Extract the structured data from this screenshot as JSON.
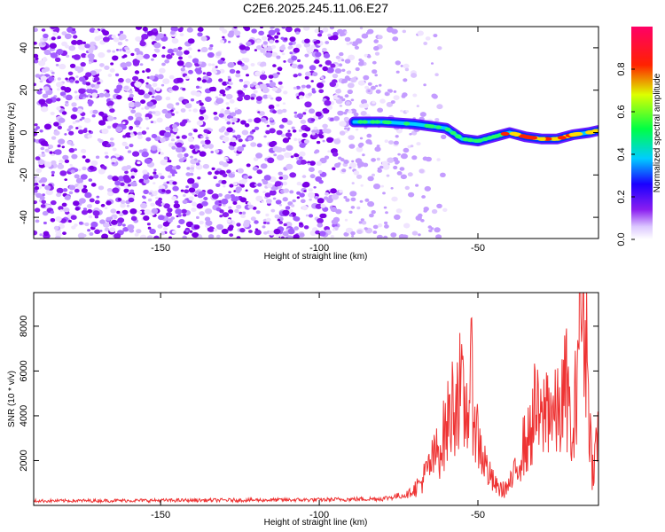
{
  "chart_data": [
    {
      "type": "heatmap",
      "title": "C2E6.2025.245.11.06.E27",
      "xlabel": "Height of straight line (km)",
      "ylabel": "Frequency (Hz)",
      "xlim": [
        -190,
        -12
      ],
      "ylim": [
        -50,
        50
      ],
      "xticks": [
        -150,
        -100,
        -50
      ],
      "yticks": [
        40,
        20,
        0,
        -20,
        -40
      ],
      "colorbar": {
        "label": "Normalized spectral amplitude",
        "range": [
          0,
          1
        ],
        "ticks": [
          "0.0",
          "0.2",
          "0.4",
          "0.6",
          "0.8"
        ],
        "colors": [
          "#ffffff",
          "#7700ee",
          "#0000ff",
          "#00ffff",
          "#00ff00",
          "#ffff00",
          "#ff0000",
          "#ff0066"
        ]
      },
      "signal_trace": {
        "description_free": true,
        "x": [
          -89,
          -80,
          -70,
          -60,
          -55,
          -50,
          -45,
          -40,
          -35,
          -30,
          -25,
          -20,
          -15,
          -12
        ],
        "y": [
          5,
          5,
          4,
          2,
          -3,
          -4,
          -2,
          0,
          -2,
          -3,
          -3,
          -1,
          0,
          1
        ]
      },
      "noise_extent_x": [
        -190,
        -68
      ]
    },
    {
      "type": "line",
      "title": "",
      "xlabel": "Height of straight line (km)",
      "ylabel": "SNR (10 * v/v)",
      "xlim": [
        -190,
        -12
      ],
      "ylim": [
        0,
        9500
      ],
      "xticks": [
        -150,
        -100,
        -50
      ],
      "yticks": [
        2000,
        4000,
        6000,
        8000
      ],
      "color": "#ee3333",
      "series": [
        {
          "name": "SNR",
          "x": [
            -190,
            -100,
            -80,
            -72,
            -68,
            -65,
            -62,
            -60,
            -58,
            -56,
            -54,
            -52,
            -50,
            -48,
            -46,
            -44,
            -42,
            -40,
            -38,
            -36,
            -34,
            -32,
            -30,
            -28,
            -26,
            -24,
            -22,
            -20,
            -18,
            -16,
            -14,
            -12
          ],
          "values": [
            200,
            250,
            300,
            500,
            1000,
            1800,
            2600,
            3400,
            4500,
            5300,
            4000,
            5500,
            3000,
            2000,
            1200,
            800,
            700,
            900,
            1500,
            2600,
            2900,
            4300,
            3500,
            4800,
            3900,
            4200,
            5400,
            2100,
            9300,
            7900,
            1500,
            3300
          ]
        }
      ]
    }
  ]
}
